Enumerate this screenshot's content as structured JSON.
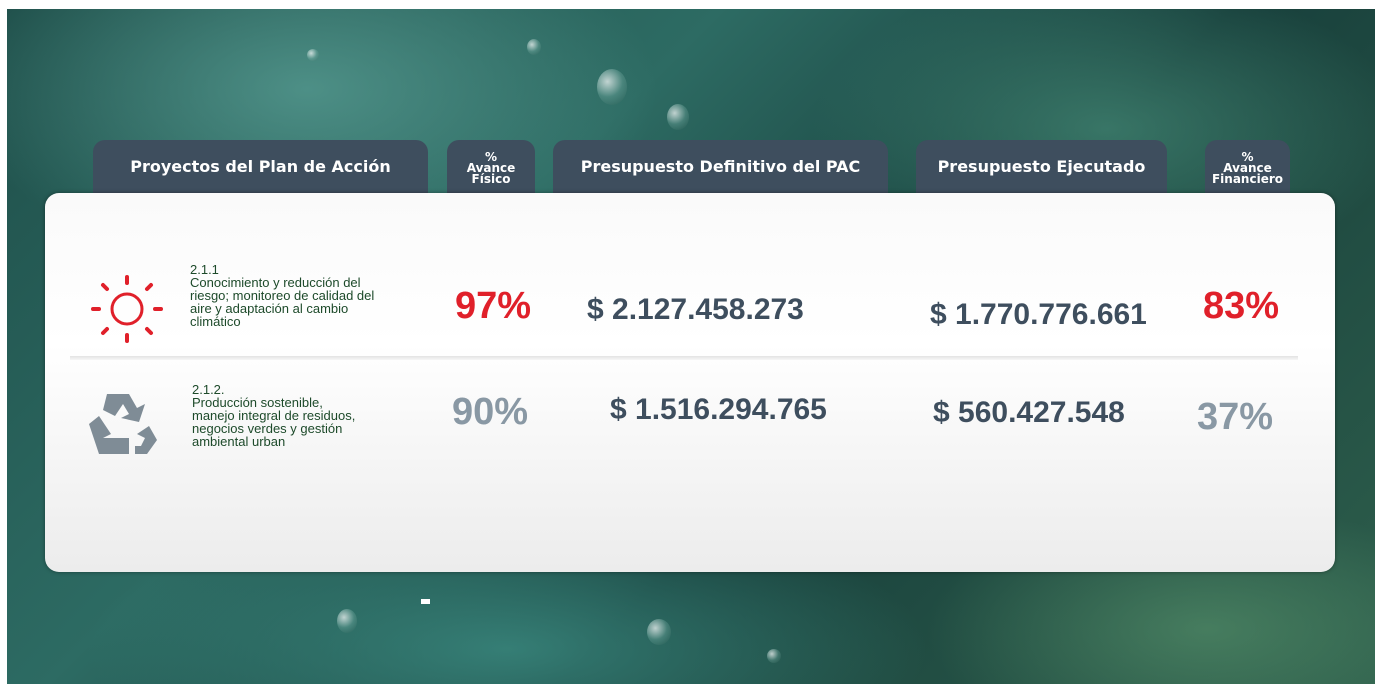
{
  "header": [
    "Proyectos del Plan de Acción",
    [
      "%",
      "Avance",
      "Físico"
    ],
    "Presupuesto Definitivo  del PAC",
    "Presupuesto Ejecutado",
    [
      "%",
      "Avance",
      "Financiero"
    ]
  ],
  "rows": [
    {
      "code": "2.1.1",
      "description": [
        "Conocimiento y  reducción del",
        "riesgo;  monitoreo de calidad  del",
        "aire y adaptación al  cambio",
        "climático"
      ],
      "avance_fisico": "97%",
      "presupuesto_definitivo": "$ 2.127.458.273",
      "presupuesto_ejecutado": "$ 1.770.776.661",
      "avance_financiero": "83%"
    },
    {
      "code": "2.1.2.",
      "description": [
        "Producción sostenible,",
        "manejo integral de  residuos,",
        "negocios verdes  y gestión",
        "ambiental  urban"
      ],
      "avance_fisico": "90%",
      "presupuesto_definitivo": "$ 1.516.294.765",
      "presupuesto_ejecutado": "$ 560.427.548",
      "avance_financiero": "37%"
    }
  ]
}
